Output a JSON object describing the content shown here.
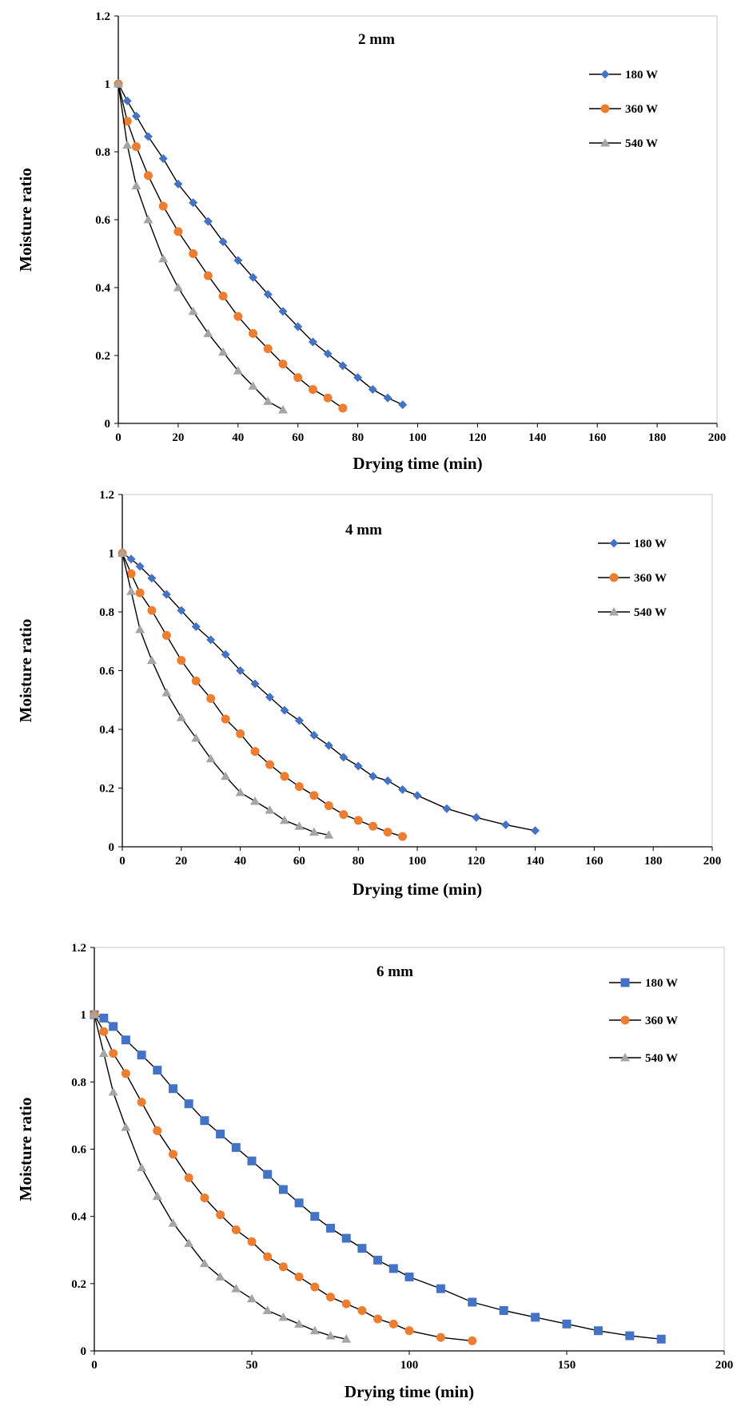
{
  "chart_data": [
    {
      "type": "line",
      "title": "2 mm",
      "xlabel": "Drying time (min)",
      "ylabel": "Moisture ratio",
      "xlim": [
        0,
        200
      ],
      "ylim": [
        0,
        1.2
      ],
      "xticks": [
        "0",
        "20",
        "40",
        "60",
        "80",
        "100",
        "120",
        "140",
        "160",
        "180",
        "200"
      ],
      "yticks": [
        "0",
        "0.2",
        "0.4",
        "0.6",
        "0.8",
        "1",
        "1.2"
      ],
      "legend_position": "top-right",
      "series": [
        {
          "name": "180 W",
          "marker": "diamond",
          "color": "#4472C4",
          "x": [
            0,
            3,
            6,
            10,
            15,
            20,
            25,
            30,
            35,
            40,
            45,
            50,
            55,
            60,
            65,
            70,
            75,
            80,
            85,
            90,
            95
          ],
          "y": [
            1.0,
            0.95,
            0.905,
            0.845,
            0.78,
            0.705,
            0.65,
            0.595,
            0.535,
            0.48,
            0.43,
            0.38,
            0.33,
            0.285,
            0.24,
            0.205,
            0.17,
            0.135,
            0.1,
            0.075,
            0.055
          ]
        },
        {
          "name": "360 W",
          "marker": "circle",
          "color": "#ED7D31",
          "x": [
            0,
            3,
            6,
            10,
            15,
            20,
            25,
            30,
            35,
            40,
            45,
            50,
            55,
            60,
            65,
            70,
            75
          ],
          "y": [
            1.0,
            0.89,
            0.815,
            0.73,
            0.64,
            0.565,
            0.5,
            0.435,
            0.375,
            0.315,
            0.265,
            0.22,
            0.175,
            0.135,
            0.1,
            0.075,
            0.045
          ]
        },
        {
          "name": "540 W",
          "marker": "triangle",
          "color": "#A5A5A5",
          "x": [
            0,
            3,
            6,
            10,
            15,
            20,
            25,
            30,
            35,
            40,
            45,
            50,
            55
          ],
          "y": [
            1.0,
            0.82,
            0.7,
            0.6,
            0.485,
            0.4,
            0.33,
            0.265,
            0.21,
            0.155,
            0.11,
            0.065,
            0.04
          ]
        }
      ]
    },
    {
      "type": "line",
      "title": "4 mm",
      "xlabel": "Drying time (min)",
      "ylabel": "Moisture ratio",
      "xlim": [
        0,
        200
      ],
      "ylim": [
        0,
        1.2
      ],
      "xticks": [
        "0",
        "20",
        "40",
        "60",
        "80",
        "100",
        "120",
        "140",
        "160",
        "180",
        "200"
      ],
      "yticks": [
        "0",
        "0.2",
        "0.4",
        "0.6",
        "0.8",
        "1",
        "1.2"
      ],
      "legend_position": "top-right",
      "series": [
        {
          "name": "180 W",
          "marker": "diamond",
          "color": "#4472C4",
          "x": [
            0,
            3,
            6,
            10,
            15,
            20,
            25,
            30,
            35,
            40,
            45,
            50,
            55,
            60,
            65,
            70,
            75,
            80,
            85,
            90,
            95,
            100,
            110,
            120,
            130,
            140
          ],
          "y": [
            1.0,
            0.98,
            0.955,
            0.915,
            0.86,
            0.805,
            0.75,
            0.705,
            0.655,
            0.6,
            0.555,
            0.51,
            0.465,
            0.43,
            0.38,
            0.345,
            0.305,
            0.275,
            0.24,
            0.225,
            0.195,
            0.175,
            0.13,
            0.1,
            0.075,
            0.055
          ]
        },
        {
          "name": "360 W",
          "marker": "circle",
          "color": "#ED7D31",
          "x": [
            0,
            3,
            6,
            10,
            15,
            20,
            25,
            30,
            35,
            40,
            45,
            50,
            55,
            60,
            65,
            70,
            75,
            80,
            85,
            90,
            95
          ],
          "y": [
            1.0,
            0.93,
            0.865,
            0.805,
            0.72,
            0.635,
            0.565,
            0.505,
            0.435,
            0.385,
            0.325,
            0.28,
            0.24,
            0.205,
            0.175,
            0.14,
            0.11,
            0.09,
            0.07,
            0.05,
            0.035
          ]
        },
        {
          "name": "540 W",
          "marker": "triangle",
          "color": "#A5A5A5",
          "x": [
            0,
            3,
            6,
            10,
            15,
            20,
            25,
            30,
            35,
            40,
            45,
            50,
            55,
            60,
            65,
            70
          ],
          "y": [
            1.0,
            0.87,
            0.74,
            0.635,
            0.525,
            0.44,
            0.37,
            0.3,
            0.24,
            0.185,
            0.155,
            0.125,
            0.09,
            0.07,
            0.05,
            0.04
          ]
        }
      ]
    },
    {
      "type": "line",
      "title": "6 mm",
      "xlabel": "Drying time (min)",
      "ylabel": "Moisture ratio",
      "xlim": [
        0,
        200
      ],
      "ylim": [
        0,
        1.2
      ],
      "xticks": [
        "0",
        "50",
        "100",
        "150",
        "200"
      ],
      "yticks": [
        "0",
        "0.2",
        "0.4",
        "0.6",
        "0.8",
        "1",
        "1.2"
      ],
      "legend_position": "top-right",
      "series": [
        {
          "name": "180 W",
          "marker": "square",
          "color": "#4472C4",
          "x": [
            0,
            3,
            6,
            10,
            15,
            20,
            25,
            30,
            35,
            40,
            45,
            50,
            55,
            60,
            65,
            70,
            75,
            80,
            85,
            90,
            95,
            100,
            110,
            120,
            130,
            140,
            150,
            160,
            170,
            180
          ],
          "y": [
            1.0,
            0.99,
            0.965,
            0.925,
            0.88,
            0.835,
            0.78,
            0.735,
            0.685,
            0.645,
            0.605,
            0.565,
            0.525,
            0.48,
            0.44,
            0.4,
            0.365,
            0.335,
            0.305,
            0.27,
            0.245,
            0.22,
            0.185,
            0.145,
            0.12,
            0.1,
            0.08,
            0.06,
            0.045,
            0.035
          ]
        },
        {
          "name": "360 W",
          "marker": "circle",
          "color": "#ED7D31",
          "x": [
            0,
            3,
            6,
            10,
            15,
            20,
            25,
            30,
            35,
            40,
            45,
            50,
            55,
            60,
            65,
            70,
            75,
            80,
            85,
            90,
            95,
            100,
            110,
            120
          ],
          "y": [
            1.0,
            0.95,
            0.885,
            0.825,
            0.74,
            0.655,
            0.585,
            0.515,
            0.455,
            0.405,
            0.36,
            0.325,
            0.28,
            0.25,
            0.22,
            0.19,
            0.16,
            0.14,
            0.12,
            0.095,
            0.08,
            0.06,
            0.04,
            0.03
          ]
        },
        {
          "name": "540 W",
          "marker": "triangle",
          "color": "#A5A5A5",
          "x": [
            0,
            3,
            6,
            10,
            15,
            20,
            25,
            30,
            35,
            40,
            45,
            50,
            55,
            60,
            65,
            70,
            75,
            80
          ],
          "y": [
            1.0,
            0.885,
            0.77,
            0.665,
            0.545,
            0.46,
            0.38,
            0.32,
            0.26,
            0.22,
            0.185,
            0.155,
            0.12,
            0.1,
            0.08,
            0.06,
            0.045,
            0.035
          ]
        }
      ]
    }
  ]
}
